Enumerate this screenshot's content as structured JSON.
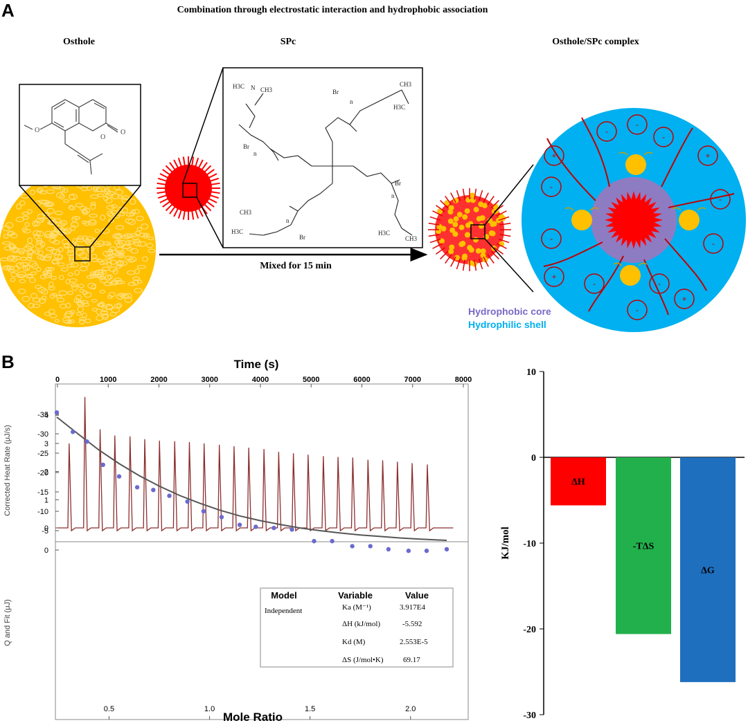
{
  "panelA": {
    "label": "A",
    "title": "Combination through electrostatic interaction and hydrophobic association",
    "osthole_label": "Osthole",
    "spc_label": "SPc",
    "complex_label": "Osthole/SPc complex",
    "arrow_label": "Mixed for 15 min",
    "core_label": "Hydrophobic core",
    "shell_label": "Hydrophilic shell",
    "spc_structure_labels": {
      "nh3c_tl": "H3C",
      "ch3_tl": "CH3",
      "n_tl": "N",
      "br_tr": "Br",
      "n_tr_n": "n",
      "ch3_tr": "CH3",
      "h3c_tr": "H3C",
      "br_l": "Br",
      "n_l": "n",
      "n_r": "n",
      "br_r": "Br",
      "ch3_bl": "CH3",
      "h3c_bl": "H3C",
      "n_bl": "n",
      "br_bl": "Br",
      "h3c_br": "H3C",
      "ch3_br": "CH3"
    },
    "ions": {
      "plus": "+",
      "minus": "-"
    },
    "colors": {
      "osthole": "#FFC000",
      "spc": "#FF0000",
      "shell": "#00B0F0",
      "core": "#8E7CC3",
      "core_text": "#7B68C8",
      "shell_text": "#00B0F0"
    }
  },
  "panelB": {
    "label": "B",
    "chart_data": [
      {
        "type": "line",
        "title": "Time (s)",
        "xlabel": "Time (s)",
        "ylabel": "Corrected Heat Rate (μJ/s)",
        "x_ticks": [
          "0",
          "1000",
          "2000",
          "3000",
          "4000",
          "5000",
          "6000",
          "7000",
          "8000"
        ],
        "y_ticks": [
          "0",
          "1",
          "2",
          "3",
          "4"
        ],
        "xlim": [
          0,
          8000
        ],
        "ylim": [
          -0.3,
          4.9
        ],
        "injection_times": [
          230,
          540,
          840,
          1130,
          1430,
          1720,
          2010,
          2310,
          2600,
          2890,
          3190,
          3480,
          3770,
          4070,
          4360,
          4650,
          4940,
          5240,
          5530,
          5820,
          6120,
          6410,
          6700,
          6990,
          7290
        ],
        "peak_heights": [
          3.0,
          4.65,
          3.5,
          3.28,
          3.25,
          3.15,
          3.1,
          3.08,
          3.05,
          3.0,
          2.95,
          2.9,
          2.85,
          2.8,
          2.7,
          2.65,
          2.6,
          2.55,
          2.52,
          2.5,
          2.42,
          2.4,
          2.35,
          2.3,
          2.25
        ],
        "color": "#8B2E2E"
      },
      {
        "type": "scatter",
        "xlabel": "Mole Ratio",
        "ylabel": "Q and Fit (μJ)",
        "x_ticks": [
          "0.5",
          "1.0",
          "1.5",
          "2.0"
        ],
        "y_ticks": [
          "0",
          "-5",
          "-10",
          "-15",
          "-20",
          "-25",
          "-30",
          "-35"
        ],
        "xlim": [
          0.2,
          2.25
        ],
        "ylim": [
          -37,
          1.5
        ],
        "x": [
          0.24,
          0.32,
          0.39,
          0.47,
          0.55,
          0.64,
          0.72,
          0.8,
          0.89,
          0.97,
          1.06,
          1.15,
          1.23,
          1.32,
          1.41,
          1.52,
          1.61,
          1.71,
          1.8,
          1.89,
          1.99,
          2.08,
          2.18
        ],
        "y": [
          -35.5,
          -30.5,
          -28.0,
          -22.0,
          -19.0,
          -16.2,
          -15.5,
          -14.0,
          -12.5,
          -10.0,
          -8.5,
          -6.5,
          -6.0,
          -5.7,
          -5.3,
          -2.3,
          -2.3,
          -1.0,
          -1.0,
          -0.2,
          0.2,
          0.2,
          -0.2
        ],
        "fit_x": [
          0.24,
          0.35,
          0.45,
          0.55,
          0.65,
          0.75,
          0.85,
          0.95,
          1.05,
          1.15,
          1.25,
          1.35,
          1.45,
          1.55,
          1.65,
          1.75,
          1.85,
          1.95,
          2.05,
          2.18
        ],
        "fit_y": [
          -34.3,
          -29.8,
          -25.8,
          -22.3,
          -19.2,
          -16.5,
          -14.1,
          -12.1,
          -10.3,
          -8.8,
          -7.6,
          -6.6,
          -5.7,
          -5.0,
          -4.4,
          -3.9,
          -3.5,
          -3.1,
          -2.8,
          -2.5
        ],
        "point_color": "#6A6ACF",
        "fit_color": "#555555"
      },
      {
        "type": "bar",
        "ylabel": "KJ/mol",
        "categories": [
          "ΔH",
          "-TΔS",
          "ΔG"
        ],
        "values": [
          -5.6,
          -20.6,
          -26.2
        ],
        "colors": [
          "#FF0000",
          "#22B04C",
          "#1F6FBF"
        ],
        "ylim": [
          -30,
          10
        ],
        "y_ticks": [
          "10",
          "0",
          "-10",
          "-20",
          "-30"
        ]
      }
    ],
    "fit_table": {
      "headers": [
        "Model",
        "Variable",
        "Value"
      ],
      "model": "Independent",
      "rows": [
        {
          "variable": "Ka (M⁻¹)",
          "value": "3.917E4"
        },
        {
          "variable": "ΔH (kJ/mol)",
          "value": "-5.592"
        },
        {
          "variable": "Kd (M)",
          "value": "2.553E-5"
        },
        {
          "variable": "ΔS (J/mol•K)",
          "value": "69.17"
        }
      ]
    }
  }
}
